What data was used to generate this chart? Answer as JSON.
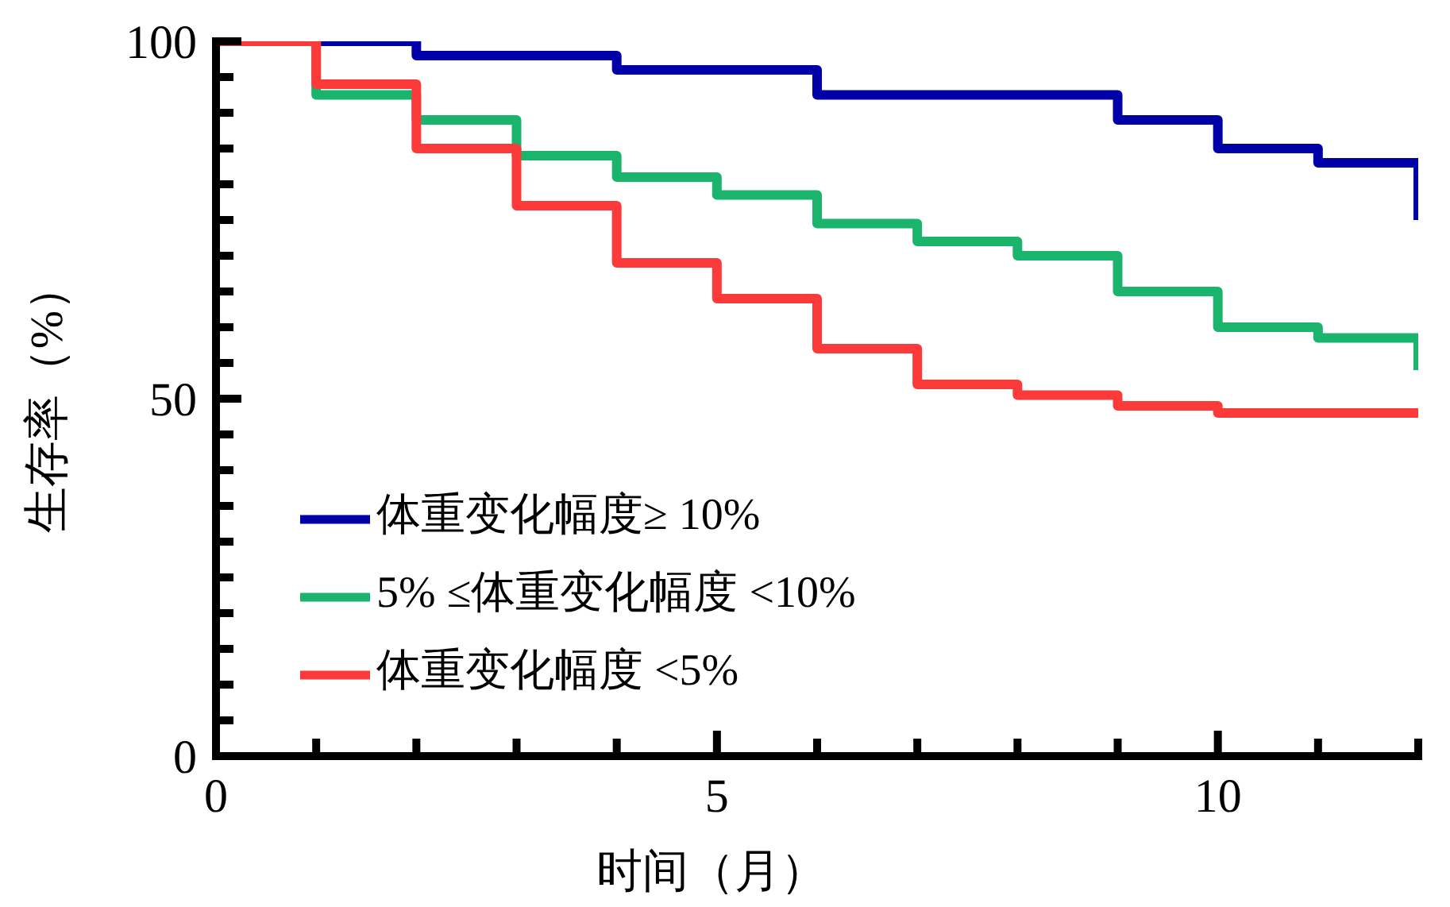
{
  "chart_data": {
    "type": "step",
    "xlabel": "时间（月）",
    "ylabel": "生存率（%）",
    "x": [
      0,
      1,
      2,
      3,
      4,
      5,
      6,
      7,
      8,
      9,
      10,
      11,
      12
    ],
    "series": [
      {
        "name": "体重变化幅度≥ 10%",
        "color": "#0000a8",
        "values": [
          100,
          100,
          98,
          98,
          96,
          96,
          92.5,
          92.5,
          92.5,
          89,
          85,
          83,
          75
        ]
      },
      {
        "name": "5% ≤体重变化幅度 <10%",
        "color": "#1bb46c",
        "values": [
          100,
          92.5,
          89,
          84,
          81,
          78.5,
          74.5,
          72,
          70,
          65,
          60,
          58.5,
          54
        ]
      },
      {
        "name": "体重变化幅度 <5%",
        "color": "#fc3a3a",
        "values": [
          100,
          94,
          85,
          77,
          69,
          64,
          57,
          52,
          50.5,
          49,
          48,
          48,
          47.5
        ]
      }
    ],
    "xlim": [
      0,
      12
    ],
    "xticks": [
      0,
      {
        "value": 1,
        "label": null
      },
      {
        "value": 2,
        "label": null
      },
      {
        "value": 3,
        "label": null
      },
      {
        "value": 4,
        "label": null
      },
      5,
      {
        "value": 6,
        "label": null
      },
      {
        "value": 7,
        "label": null
      },
      {
        "value": 8,
        "label": null
      },
      {
        "value": 9,
        "label": null
      },
      10,
      {
        "value": 11,
        "label": null
      },
      {
        "value": 12,
        "label": null
      }
    ],
    "ylim": [
      0,
      100
    ],
    "yticks": [
      0,
      {
        "value": 5,
        "label": null
      },
      {
        "value": 10,
        "label": null
      },
      {
        "value": 15,
        "label": null
      },
      {
        "value": 20,
        "label": null
      },
      {
        "value": 25,
        "label": null
      },
      {
        "value": 30,
        "label": null
      },
      {
        "value": 35,
        "label": null
      },
      {
        "value": 40,
        "label": null
      },
      {
        "value": 45,
        "label": null
      },
      50,
      {
        "value": 55,
        "label": null
      },
      {
        "value": 60,
        "label": null
      },
      {
        "value": 65,
        "label": null
      },
      {
        "value": 70,
        "label": null
      },
      {
        "value": 75,
        "label": null
      },
      {
        "value": 80,
        "label": null
      },
      {
        "value": 85,
        "label": null
      },
      {
        "value": 90,
        "label": null
      },
      {
        "value": 95,
        "label": null
      },
      100
    ],
    "legend": "bottom left",
    "marker": "none",
    "grid": false
  }
}
